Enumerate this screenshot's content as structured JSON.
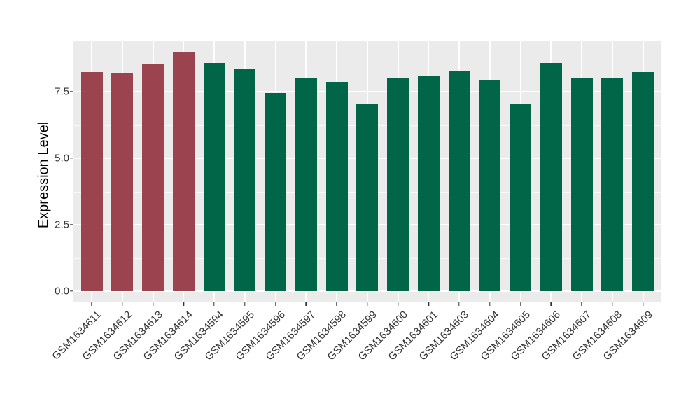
{
  "chart_data": {
    "type": "bar",
    "title": "",
    "xlabel": "",
    "ylabel": "Expression Level",
    "categories": [
      "GSM1634611",
      "GSM1634612",
      "GSM1634613",
      "GSM1634614",
      "GSM1634594",
      "GSM1634595",
      "GSM1634596",
      "GSM1634597",
      "GSM1634598",
      "GSM1634599",
      "GSM1634600",
      "GSM1634601",
      "GSM1634603",
      "GSM1634604",
      "GSM1634605",
      "GSM1634606",
      "GSM1634607",
      "GSM1634608",
      "GSM1634609"
    ],
    "values": [
      8.25,
      8.18,
      8.53,
      9.0,
      8.58,
      8.38,
      7.45,
      8.02,
      7.88,
      7.05,
      8.0,
      8.1,
      8.28,
      7.95,
      7.05,
      8.57,
      8.0,
      8.0,
      8.25
    ],
    "bar_colors": [
      "#9B4450",
      "#9B4450",
      "#9B4450",
      "#9B4450",
      "#016647",
      "#016647",
      "#016647",
      "#016647",
      "#016647",
      "#016647",
      "#016647",
      "#016647",
      "#016647",
      "#016647",
      "#016647",
      "#016647",
      "#016647",
      "#016647",
      "#016647"
    ],
    "group_colors": {
      "highlight_red": "#9B4450",
      "default_green": "#016647"
    },
    "yticks": [
      0.0,
      2.5,
      5.0,
      7.5
    ],
    "ytick_labels": [
      "0.0",
      "2.5",
      "5.0",
      "7.5"
    ],
    "minor_yticks": [
      1.25,
      3.75,
      6.25,
      8.75
    ],
    "ylim": [
      -0.45,
      9.42
    ],
    "grid": "horizontal major+minor white, vertical major at each category, on grey panel",
    "legend_position": "none",
    "panel_background": "#EBEBEB",
    "gridline_color": "#FFFFFF",
    "axis_text_color": "#333333",
    "axis_title_color": "#000000"
  }
}
